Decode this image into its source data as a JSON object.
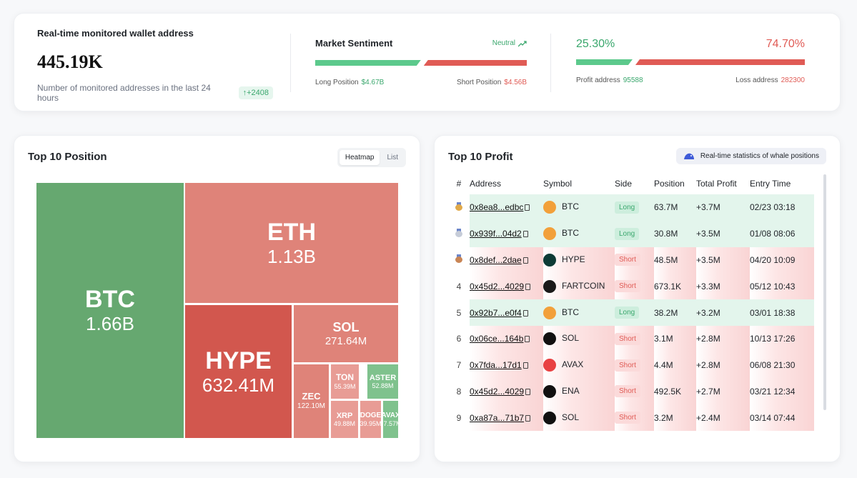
{
  "stats": {
    "monitored_label": "Real-time monitored wallet address",
    "monitored_value": "445.19K",
    "last24_label": "Number of monitored addresses in the last 24 hours",
    "last24_change": "↑+2408",
    "sentiment_title": "Market Sentiment",
    "sentiment_status": "Neutral",
    "long_label": "Long Position",
    "long_value": "$4.67B",
    "short_label": "Short Position",
    "short_value": "$4.56B",
    "long_ratio": 0.506,
    "profit_pct": "25.30%",
    "loss_pct": "74.70%",
    "profit_ratio": 0.253,
    "profit_label": "Profit address",
    "profit_value": "95588",
    "loss_label": "Loss address",
    "loss_value": "282300"
  },
  "positions": {
    "title": "Top 10 Position",
    "tabs": [
      "Heatmap",
      "List"
    ],
    "active_tab": "Heatmap",
    "tiles": [
      {
        "symbol": "BTC",
        "value": "1.66B",
        "color": "#66a870"
      },
      {
        "symbol": "ETH",
        "value": "1.13B",
        "color": "#df8379"
      },
      {
        "symbol": "HYPE",
        "value": "632.41M",
        "color": "#d2574e"
      },
      {
        "symbol": "SOL",
        "value": "271.64M",
        "color": "#df8379"
      },
      {
        "symbol": "ZEC",
        "value": "122.10M",
        "color": "#df8379"
      },
      {
        "symbol": "TON",
        "value": "55.39M",
        "color": "#e89c95"
      },
      {
        "symbol": "ASTER",
        "value": "52.88M",
        "color": "#7fc28d"
      },
      {
        "symbol": "XRP",
        "value": "49.88M",
        "color": "#e89c95"
      },
      {
        "symbol": "DOGE",
        "value": "39.95M",
        "color": "#e89c95"
      },
      {
        "symbol": "AVAX",
        "value": "37.57M",
        "color": "#7fc28d"
      }
    ]
  },
  "profit": {
    "title": "Top 10 Profit",
    "badge": "Real-time statistics of whale positions",
    "columns": [
      "#",
      "Address",
      "Symbol",
      "Side",
      "Position",
      "Total Profit",
      "Entry Time"
    ],
    "rows": [
      {
        "rank": "",
        "medal": "gold",
        "address": "0x8ea8...edbc",
        "symbol": "BTC",
        "coin_color": "#f2a03a",
        "side": "Long",
        "position": "63.7M",
        "profit": "+3.7M",
        "entry": "02/23 03:18"
      },
      {
        "rank": "",
        "medal": "silver",
        "address": "0x939f...04d2",
        "symbol": "BTC",
        "coin_color": "#f2a03a",
        "side": "Long",
        "position": "30.8M",
        "profit": "+3.5M",
        "entry": "01/08 08:06"
      },
      {
        "rank": "",
        "medal": "bronze",
        "address": "0x8def...2dae",
        "symbol": "HYPE",
        "coin_color": "#0d3b36",
        "side": "Short",
        "position": "48.5M",
        "profit": "+3.5M",
        "entry": "04/20 10:09"
      },
      {
        "rank": "4",
        "medal": "",
        "address": "0x45d2...4029",
        "symbol": "FARTCOIN",
        "coin_color": "#1a1a1a",
        "side": "Short",
        "position": "673.1K",
        "profit": "+3.3M",
        "entry": "05/12 10:43"
      },
      {
        "rank": "5",
        "medal": "",
        "address": "0x92b7...e0f4",
        "symbol": "BTC",
        "coin_color": "#f2a03a",
        "side": "Long",
        "position": "38.2M",
        "profit": "+3.2M",
        "entry": "03/01 18:38"
      },
      {
        "rank": "6",
        "medal": "",
        "address": "0x06ce...164b",
        "symbol": "SOL",
        "coin_color": "#111111",
        "side": "Short",
        "position": "3.1M",
        "profit": "+2.8M",
        "entry": "10/13 17:26"
      },
      {
        "rank": "7",
        "medal": "",
        "address": "0x7fda...17d1",
        "symbol": "AVAX",
        "coin_color": "#e84142",
        "side": "Short",
        "position": "4.4M",
        "profit": "+2.8M",
        "entry": "06/08 21:30"
      },
      {
        "rank": "8",
        "medal": "",
        "address": "0x45d2...4029",
        "symbol": "ENA",
        "coin_color": "#111111",
        "side": "Short",
        "position": "492.5K",
        "profit": "+2.7M",
        "entry": "03/21 12:34"
      },
      {
        "rank": "9",
        "medal": "",
        "address": "0xa87a...71b7",
        "symbol": "SOL",
        "coin_color": "#111111",
        "side": "Short",
        "position": "3.2M",
        "profit": "+2.4M",
        "entry": "03/14 07:44"
      }
    ]
  }
}
